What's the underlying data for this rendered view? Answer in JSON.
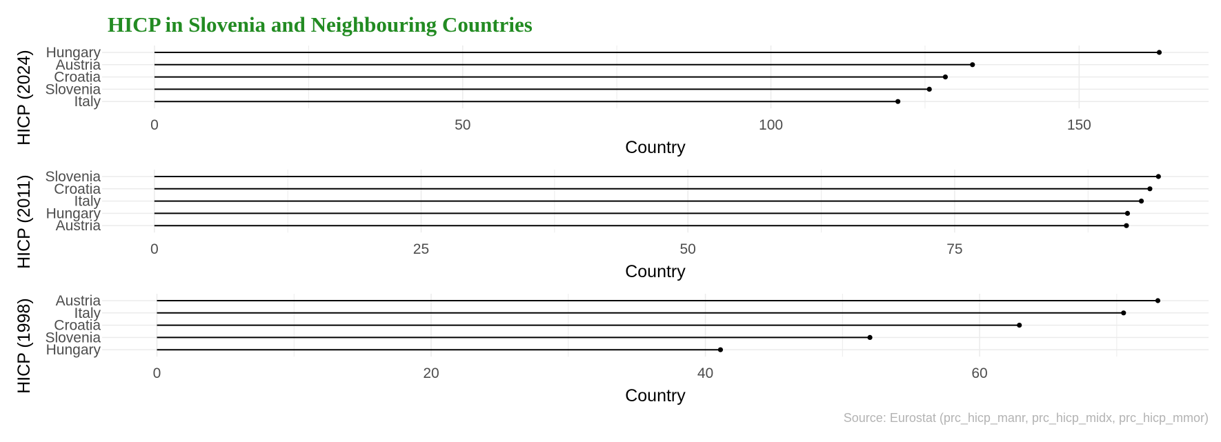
{
  "title": "HICP in Slovenia and Neighbouring Countries",
  "source": "Source: Eurostat (prc_hicp_manr, prc_hicp_midx, prc_hicp_mmor)",
  "colors": {
    "title": "#228b22",
    "line": "#000000",
    "grid": "#ebebeb",
    "tick_label": "#4d4d4d",
    "axis_title": "#000000",
    "source": "#b3b3b3"
  },
  "chart_data": [
    {
      "type": "lollipop",
      "orientation": "horizontal",
      "ylabel": "HICP (2024)",
      "xlabel": "Country",
      "categories": [
        "Hungary",
        "Austria",
        "Croatia",
        "Slovenia",
        "Italy"
      ],
      "values": [
        163.0,
        132.7,
        128.3,
        125.7,
        120.6
      ],
      "xlim": [
        -8.5,
        171.0
      ],
      "xticks": [
        0,
        50,
        100,
        150
      ],
      "xtick_labels": [
        "0",
        "50",
        "100",
        "150"
      ],
      "minor_grid": [
        25,
        75,
        125
      ],
      "grid": true
    },
    {
      "type": "lollipop",
      "orientation": "horizontal",
      "ylabel": "HICP (2011)",
      "xlabel": "Country",
      "categories": [
        "Slovenia",
        "Croatia",
        "Italy",
        "Hungary",
        "Austria"
      ],
      "values": [
        94.1,
        93.3,
        92.5,
        91.2,
        91.1
      ],
      "xlim": [
        -4.9,
        98.8
      ],
      "xticks": [
        0,
        25,
        50,
        75
      ],
      "xtick_labels": [
        "0",
        "25",
        "50",
        "75"
      ],
      "minor_grid": [
        12.5,
        37.5,
        62.5,
        87.5
      ],
      "grid": true
    },
    {
      "type": "lollipop",
      "orientation": "horizontal",
      "ylabel": "HICP (1998)",
      "xlabel": "Country",
      "categories": [
        "Austria",
        "Italy",
        "Croatia",
        "Slovenia",
        "Hungary"
      ],
      "values": [
        73.0,
        70.5,
        62.9,
        52.0,
        41.1
      ],
      "xlim": [
        -4.0,
        76.7
      ],
      "xticks": [
        0,
        20,
        40,
        60
      ],
      "xtick_labels": [
        "0",
        "20",
        "40",
        "60"
      ],
      "minor_grid": [
        10,
        30,
        50,
        70
      ],
      "grid": true
    }
  ]
}
